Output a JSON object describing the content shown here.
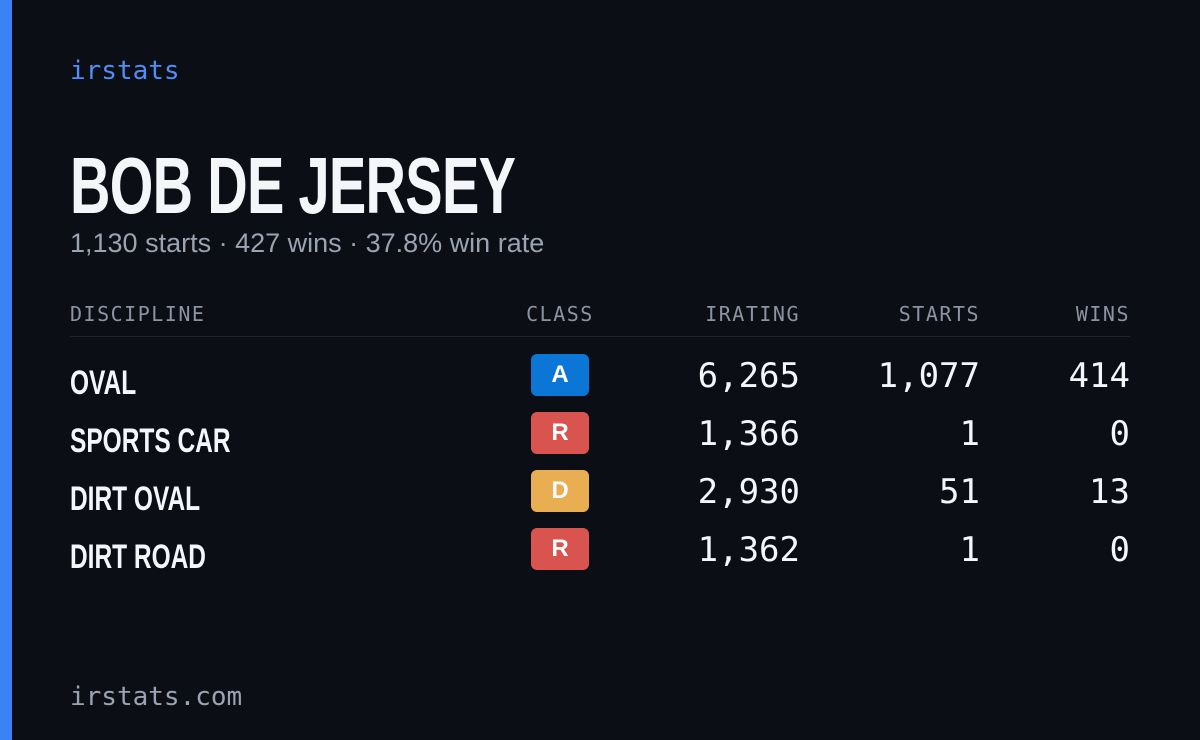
{
  "brand": "irstats",
  "driver": {
    "name": "BOB DE JERSEY",
    "summary": "1,130 starts · 427 wins · 37.8% win rate"
  },
  "table": {
    "headers": [
      "DISCIPLINE",
      "CLASS",
      "IRATING",
      "STARTS",
      "WINS"
    ],
    "rows": [
      {
        "discipline": "OVAL",
        "class": "A",
        "class_color": "#0b76d6",
        "irating": "6,265",
        "starts": "1,077",
        "wins": "414"
      },
      {
        "discipline": "SPORTS CAR",
        "class": "R",
        "class_color": "#d9544f",
        "irating": "1,366",
        "starts": "1",
        "wins": "0"
      },
      {
        "discipline": "DIRT OVAL",
        "class": "D",
        "class_color": "#e9ae52",
        "irating": "2,930",
        "starts": "51",
        "wins": "13"
      },
      {
        "discipline": "DIRT ROAD",
        "class": "R",
        "class_color": "#d9544f",
        "irating": "1,362",
        "starts": "1",
        "wins": "0"
      }
    ]
  },
  "footer": "irstats.com"
}
